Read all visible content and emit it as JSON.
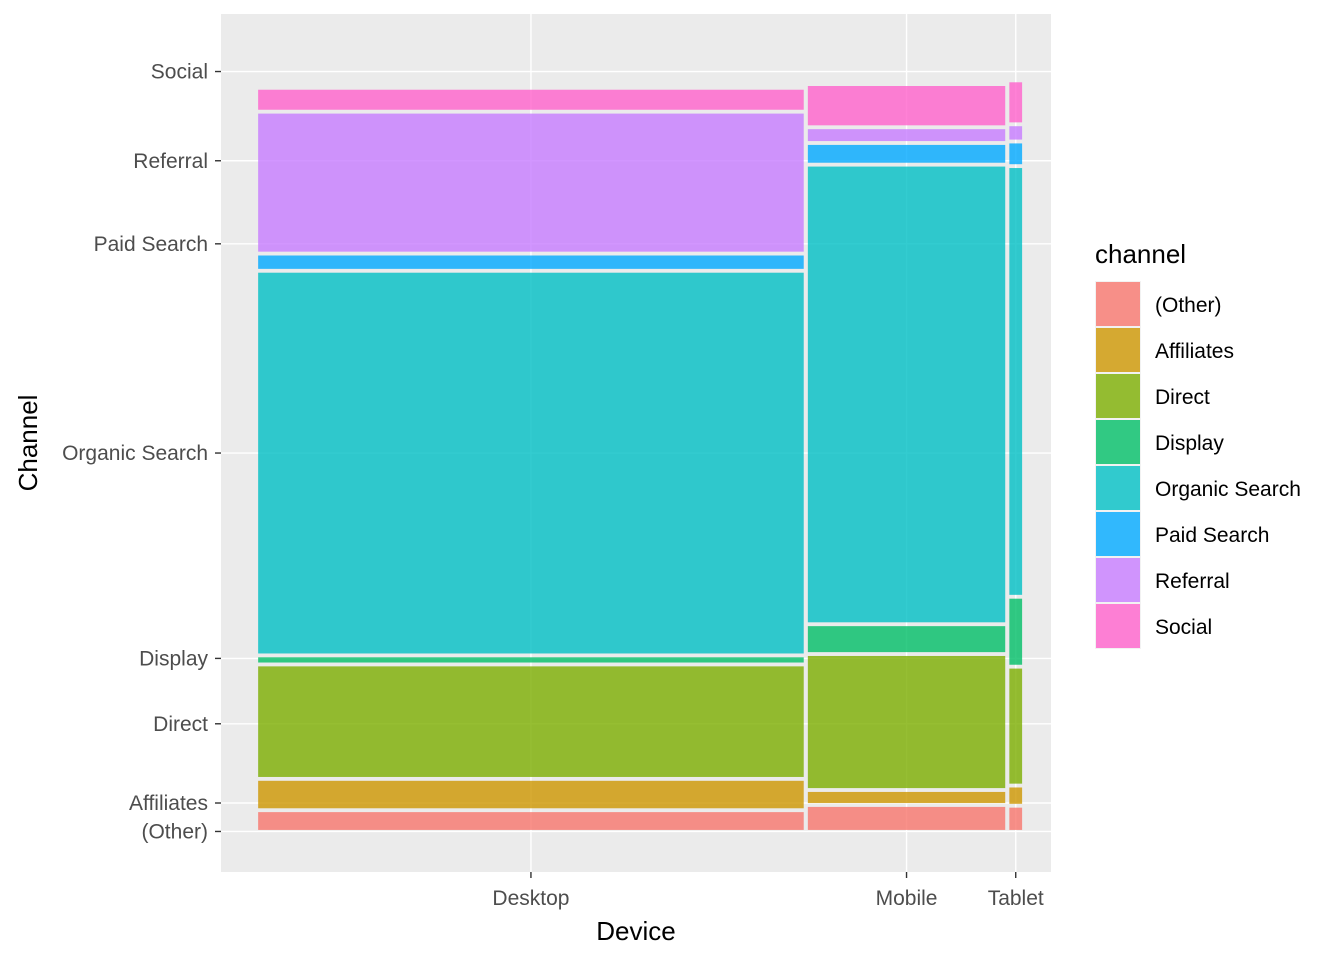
{
  "chart_data": {
    "type": "mosaic",
    "xlabel": "Device",
    "ylabel": "Channel",
    "legend_title": "channel",
    "legend_position": "right",
    "grid": true,
    "channels": [
      "(Other)",
      "Affiliates",
      "Direct",
      "Display",
      "Organic Search",
      "Paid Search",
      "Referral",
      "Social"
    ],
    "colors": [
      "#F8766D",
      "#CD9600",
      "#7CAE00",
      "#00BE67",
      "#00BFC4",
      "#00A9FF",
      "#C77CFF",
      "#FF61CC"
    ],
    "fill_opacity": 0.8,
    "devices": [
      {
        "name": "Desktop",
        "width": 0.727,
        "proportions": [
          0.024,
          0.037,
          0.149,
          0.007,
          0.513,
          0.018,
          0.186,
          0.027
        ]
      },
      {
        "name": "Mobile",
        "width": 0.263,
        "proportions": [
          0.031,
          0.015,
          0.178,
          0.035,
          0.614,
          0.024,
          0.016,
          0.053
        ]
      },
      {
        "name": "Tablet",
        "width": 0.017,
        "proportions": [
          0.03,
          0.022,
          0.155,
          0.089,
          0.575,
          0.028,
          0.018,
          0.054
        ]
      }
    ],
    "y_tick_labels": [
      "Social",
      "Referral",
      "Paid Search",
      "Organic Search",
      "Display",
      "Direct",
      "Affiliates",
      "(Other)"
    ],
    "y_tick_positions": [
      0.986,
      0.87,
      0.762,
      0.49,
      0.223,
      0.138,
      0.035,
      -0.002
    ]
  }
}
